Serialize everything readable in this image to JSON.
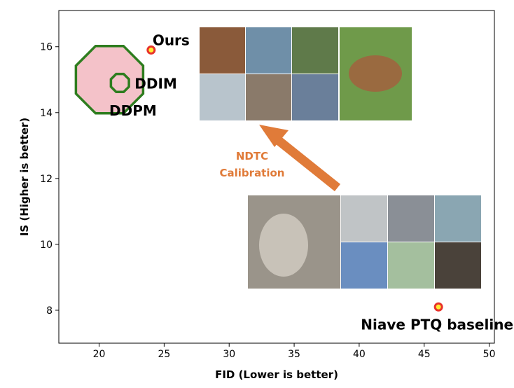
{
  "chart_data": {
    "type": "scatter",
    "title": "",
    "xlabel": "FID (Lower is better)",
    "ylabel": "IS (Higher is better)",
    "xlim": [
      16.9,
      50.4
    ],
    "ylim": [
      7.0,
      17.1
    ],
    "xticks": [
      20,
      25,
      30,
      35,
      40,
      45,
      50
    ],
    "yticks": [
      8,
      10,
      12,
      14,
      16
    ],
    "regions": [
      {
        "name": "DDPM",
        "label": "DDPM",
        "x": 20.8,
        "y": 15.0,
        "radius_units": 2.8,
        "fill": "#f4c2c9",
        "stroke": "#2e7d1f"
      },
      {
        "name": "DDIM",
        "label": "DDIM",
        "x": 21.6,
        "y": 14.9,
        "radius_units": 0.75,
        "fill": "#f4c2c9",
        "stroke": "#2e7d1f"
      }
    ],
    "points": [
      {
        "name": "Ours",
        "label": "Ours",
        "x": 24.0,
        "y": 15.9
      },
      {
        "name": "Niave PTQ baseline",
        "label": "Niave PTQ baseline",
        "x": 46.1,
        "y": 8.1
      }
    ],
    "annotation": {
      "lines": [
        "NDTC",
        "Calibration"
      ],
      "color": "#e07b39"
    }
  }
}
